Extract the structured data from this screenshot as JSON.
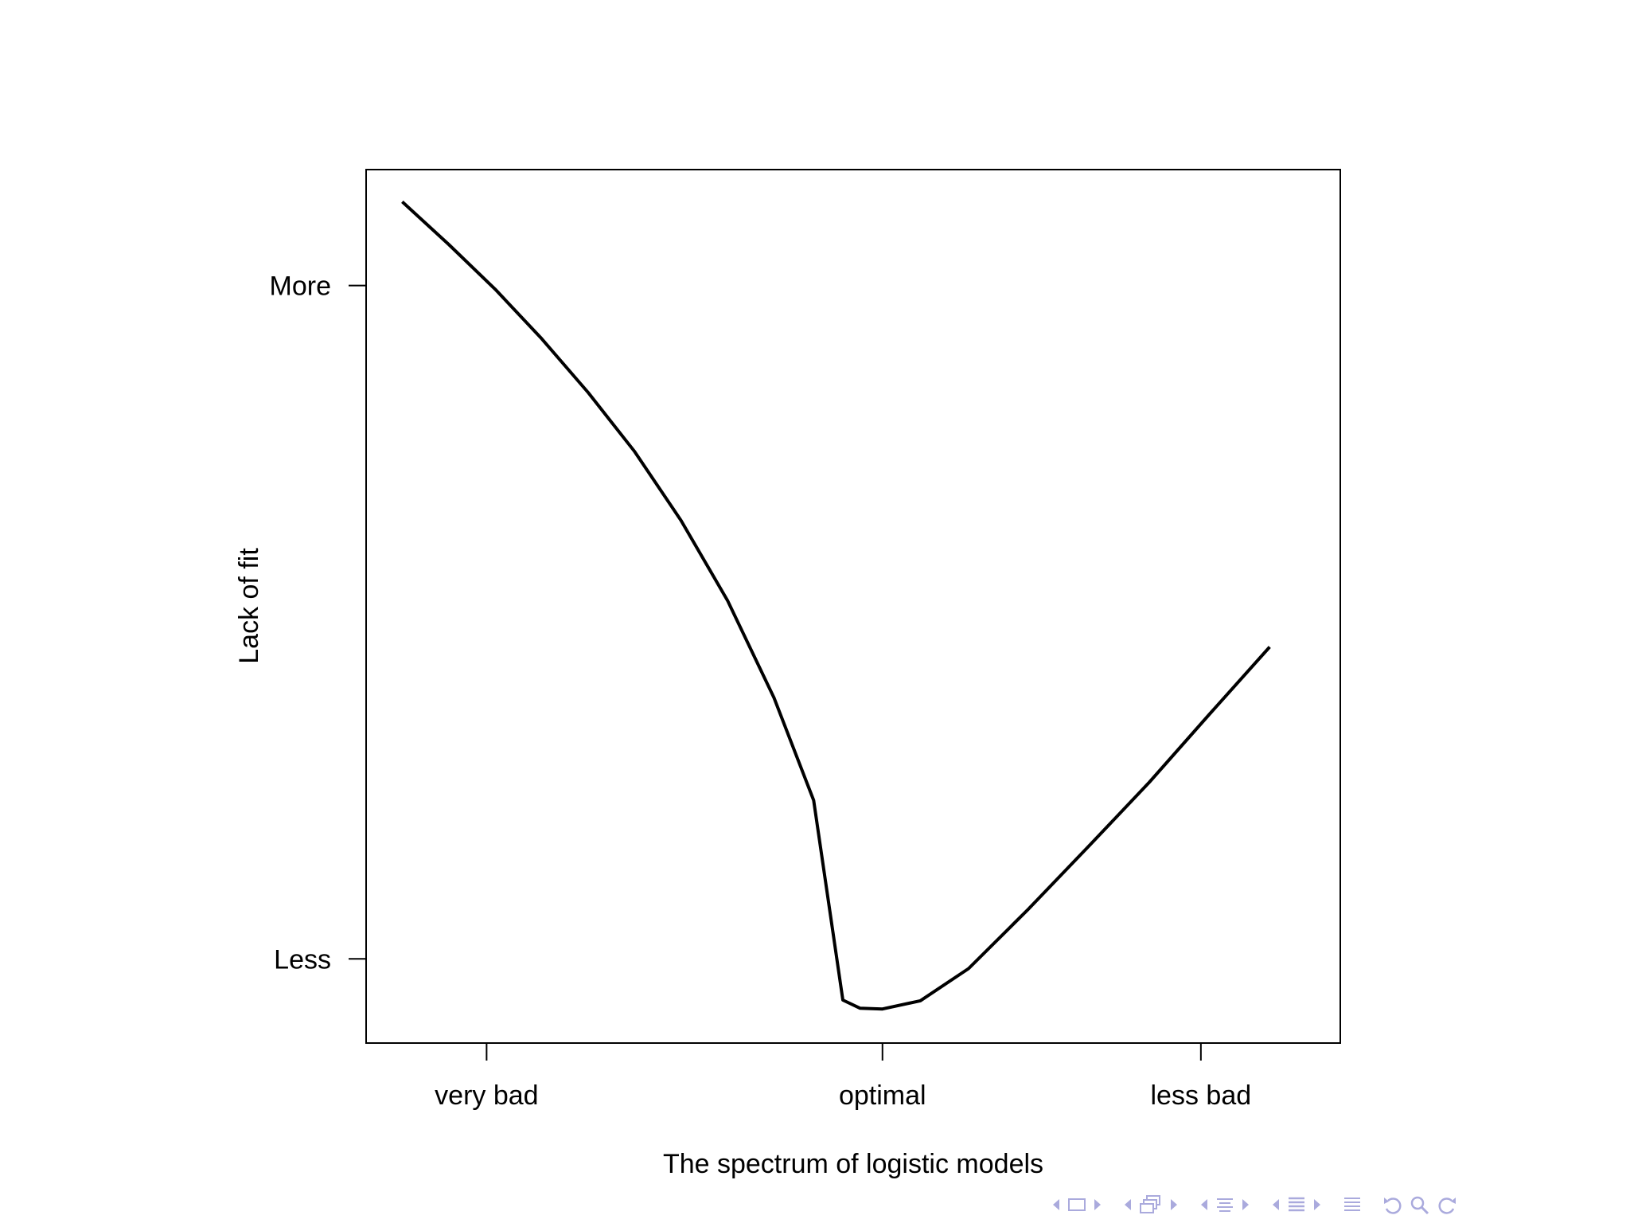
{
  "chart_data": {
    "type": "line",
    "title": "",
    "xlabel": "The spectrum of logistic models",
    "ylabel": "Lack of fit",
    "x_ticks": [
      {
        "value": 0.7,
        "label": "very bad"
      },
      {
        "value": 3.0,
        "label": "optimal"
      },
      {
        "value": 4.85,
        "label": "less bad"
      }
    ],
    "y_ticks": [
      {
        "value": 10,
        "label": "More"
      },
      {
        "value": 1,
        "label": "Less"
      }
    ],
    "xlim": [
      0.0,
      5.66
    ],
    "ylim": [
      -0.125,
      11.55
    ],
    "grid": false,
    "legend": "none",
    "series": [
      {
        "color": "#000000",
        "points": [
          [
            0.21,
            11.12
          ],
          [
            0.48,
            10.55
          ],
          [
            0.75,
            9.95
          ],
          [
            1.02,
            9.29
          ],
          [
            1.29,
            8.57
          ],
          [
            1.56,
            7.78
          ],
          [
            1.83,
            6.86
          ],
          [
            2.1,
            5.79
          ],
          [
            2.37,
            4.49
          ],
          [
            2.6,
            3.12
          ],
          [
            2.77,
            0.45
          ],
          [
            2.87,
            0.34
          ],
          [
            3.0,
            0.33
          ],
          [
            3.22,
            0.44
          ],
          [
            3.5,
            0.87
          ],
          [
            3.85,
            1.67
          ],
          [
            4.2,
            2.51
          ],
          [
            4.55,
            3.36
          ],
          [
            4.9,
            4.27
          ],
          [
            5.25,
            5.17
          ]
        ]
      }
    ]
  },
  "nav": {
    "accent_color": "#aaaadd",
    "icons": [
      "arrow-left-icon",
      "frame-icon",
      "arrow-right-icon",
      "arrow-left-icon",
      "subsection-icon",
      "arrow-right-icon",
      "arrow-left-icon",
      "section-icon",
      "arrow-right-icon",
      "arrow-left-icon",
      "document-icon",
      "arrow-right-icon",
      "outline-icon",
      "undo-icon",
      "search-icon",
      "redo-icon"
    ]
  }
}
